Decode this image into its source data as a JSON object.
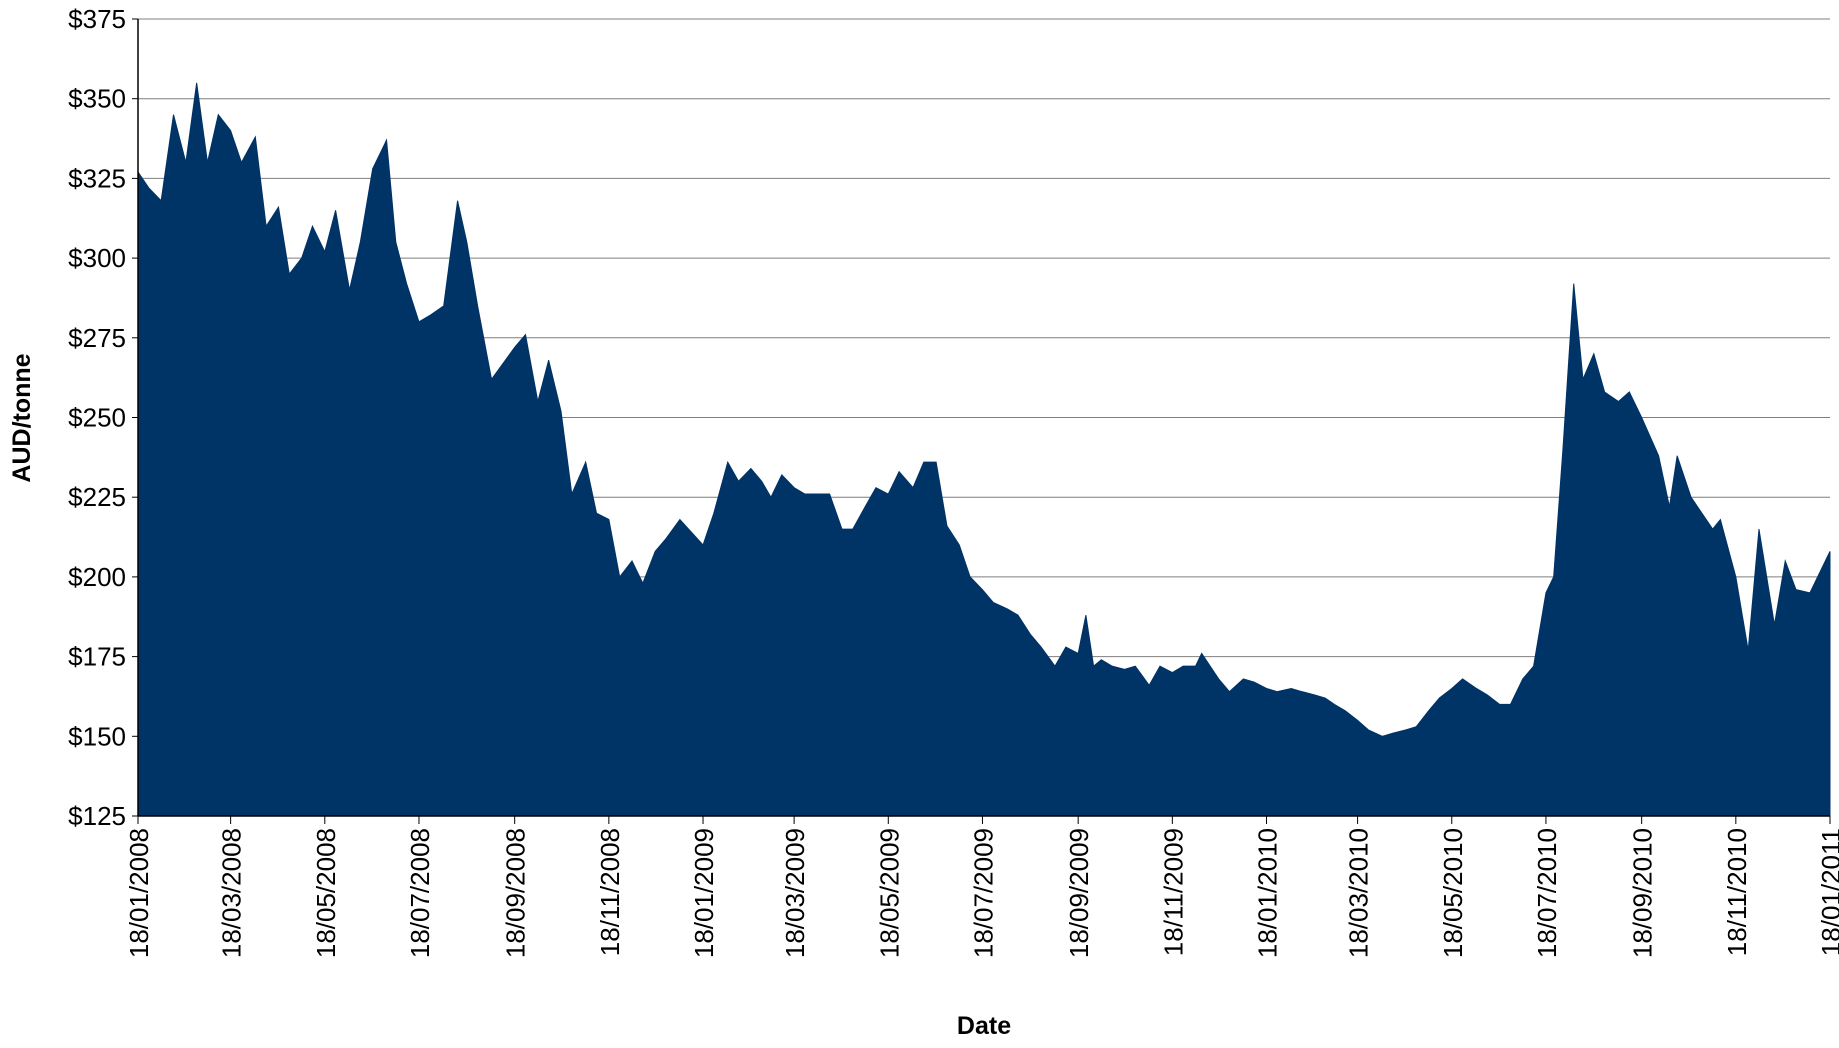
{
  "chart_data": {
    "type": "area",
    "x_label": "Date",
    "y_label": "AUD/tonne",
    "color": "#003366",
    "grid": true,
    "ylim": [
      125,
      375
    ],
    "yticks": [
      {
        "value": 125,
        "label": "$125"
      },
      {
        "value": 150,
        "label": "$150"
      },
      {
        "value": 175,
        "label": "$175"
      },
      {
        "value": 200,
        "label": "$200"
      },
      {
        "value": 225,
        "label": "$225"
      },
      {
        "value": 250,
        "label": "$250"
      },
      {
        "value": 275,
        "label": "$275"
      },
      {
        "value": 300,
        "label": "$300"
      },
      {
        "value": 325,
        "label": "$325"
      },
      {
        "value": 350,
        "label": "$350"
      },
      {
        "value": 375,
        "label": "$375"
      }
    ],
    "xlim": [
      "18/01/2008",
      "18/01/2011"
    ],
    "xticks": [
      "18/01/2008",
      "18/03/2008",
      "18/05/2008",
      "18/07/2008",
      "18/09/2008",
      "18/11/2008",
      "18/01/2009",
      "18/03/2009",
      "18/05/2009",
      "18/07/2009",
      "18/09/2009",
      "18/11/2009",
      "18/01/2010",
      "18/03/2010",
      "18/05/2010",
      "18/07/2010",
      "18/09/2010",
      "18/11/2010",
      "18/01/2011"
    ],
    "x": [
      "18/01/2008",
      "25/01/2008",
      "02/02/2008",
      "10/02/2008",
      "18/02/2008",
      "25/02/2008",
      "03/03/2008",
      "10/03/2008",
      "18/03/2008",
      "25/03/2008",
      "03/04/2008",
      "10/04/2008",
      "18/04/2008",
      "25/04/2008",
      "03/05/2008",
      "10/05/2008",
      "18/05/2008",
      "25/05/2008",
      "03/06/2008",
      "10/06/2008",
      "18/06/2008",
      "27/06/2008",
      "03/07/2008",
      "10/07/2008",
      "18/07/2008",
      "25/07/2008",
      "03/08/2008",
      "12/08/2008",
      "18/08/2008",
      "25/08/2008",
      "03/09/2008",
      "18/09/2008",
      "25/09/2008",
      "03/10/2008",
      "10/10/2008",
      "18/10/2008",
      "25/10/2008",
      "03/11/2008",
      "10/11/2008",
      "18/11/2008",
      "25/11/2008",
      "03/12/2008",
      "10/12/2008",
      "18/12/2008",
      "25/12/2008",
      "03/01/2009",
      "18/01/2009",
      "25/01/2009",
      "03/02/2009",
      "10/02/2009",
      "18/02/2009",
      "25/02/2009",
      "03/03/2009",
      "10/03/2009",
      "18/03/2009",
      "25/03/2009",
      "10/04/2009",
      "18/04/2009",
      "25/04/2009",
      "03/05/2009",
      "10/05/2009",
      "18/05/2009",
      "25/05/2009",
      "03/06/2009",
      "10/06/2009",
      "18/06/2009",
      "25/06/2009",
      "03/07/2009",
      "10/07/2009",
      "18/07/2009",
      "25/07/2009",
      "03/08/2009",
      "10/08/2009",
      "18/08/2009",
      "25/08/2009",
      "03/09/2009",
      "10/09/2009",
      "18/09/2009",
      "23/09/2009",
      "28/09/2009",
      "03/10/2009",
      "10/10/2009",
      "18/10/2009",
      "25/10/2009",
      "03/11/2009",
      "10/11/2009",
      "18/11/2009",
      "25/11/2009",
      "03/12/2009",
      "07/12/2009",
      "18/12/2009",
      "25/12/2009",
      "03/01/2010",
      "10/01/2010",
      "18/01/2010",
      "25/01/2010",
      "03/02/2010",
      "10/02/2010",
      "18/02/2010",
      "25/02/2010",
      "03/03/2010",
      "10/03/2010",
      "18/03/2010",
      "25/03/2010",
      "03/04/2010",
      "10/04/2010",
      "18/04/2010",
      "25/04/2010",
      "03/05/2010",
      "10/05/2010",
      "18/05/2010",
      "25/05/2010",
      "03/06/2010",
      "10/06/2010",
      "18/06/2010",
      "25/06/2010",
      "03/07/2010",
      "10/07/2010",
      "18/07/2010",
      "23/07/2010",
      "29/07/2010",
      "05/08/2010",
      "11/08/2010",
      "18/08/2010",
      "25/08/2010",
      "03/09/2010",
      "10/09/2010",
      "18/09/2010",
      "29/09/2010",
      "06/10/2010",
      "11/10/2010",
      "20/10/2010",
      "27/10/2010",
      "03/11/2010",
      "08/11/2010",
      "18/11/2010",
      "26/11/2010",
      "03/12/2010",
      "13/12/2010",
      "20/12/2010",
      "27/12/2010",
      "05/01/2011",
      "10/01/2011",
      "18/01/2011"
    ],
    "values": [
      327,
      322,
      318,
      345,
      330,
      355,
      330,
      345,
      340,
      330,
      338,
      310,
      316,
      295,
      300,
      310,
      302,
      315,
      290,
      305,
      328,
      337,
      305,
      292,
      280,
      282,
      285,
      318,
      305,
      285,
      262,
      272,
      276,
      255,
      268,
      252,
      226,
      236,
      220,
      218,
      200,
      205,
      198,
      208,
      212,
      218,
      210,
      220,
      236,
      230,
      234,
      230,
      225,
      232,
      228,
      226,
      226,
      215,
      215,
      222,
      228,
      226,
      233,
      228,
      236,
      236,
      216,
      210,
      200,
      196,
      192,
      190,
      188,
      182,
      178,
      172,
      178,
      176,
      188,
      172,
      174,
      172,
      171,
      172,
      166,
      172,
      170,
      172,
      172,
      176,
      168,
      164,
      168,
      167,
      165,
      164,
      165,
      164,
      163,
      162,
      160,
      158,
      155,
      152,
      150,
      151,
      152,
      153,
      158,
      162,
      165,
      168,
      165,
      163,
      160,
      160,
      168,
      172,
      195,
      200,
      240,
      292,
      262,
      270,
      258,
      255,
      258,
      250,
      238,
      222,
      238,
      225,
      220,
      215,
      218,
      200,
      177,
      215,
      185,
      205,
      196,
      195,
      200,
      208
    ]
  }
}
